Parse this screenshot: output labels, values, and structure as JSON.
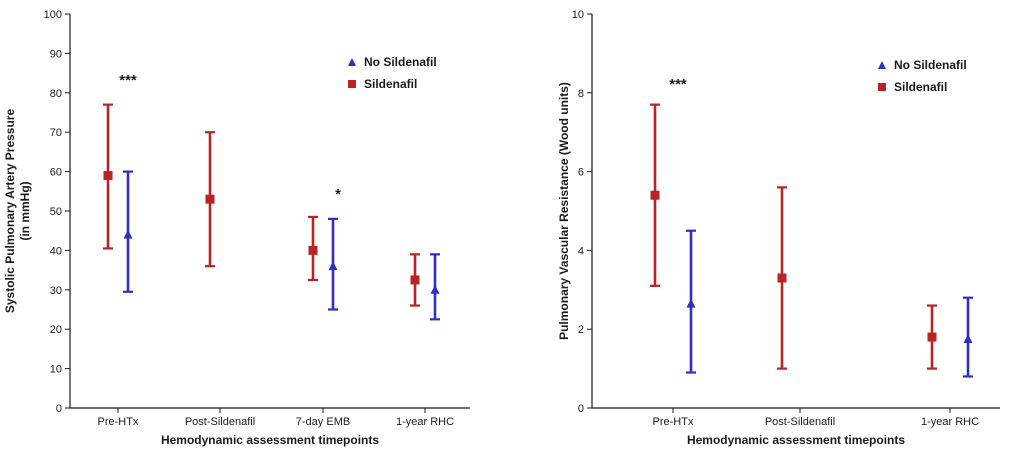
{
  "chart_data": [
    {
      "type": "scatter",
      "ylabel": "Systolic Pulmonary Artery Pressure\n(in mmHg)",
      "xlabel": "Hemodynamic assessment timepoints",
      "ylim": [
        0,
        100
      ],
      "yticks": [
        "0",
        "10",
        "20",
        "30",
        "40",
        "50",
        "60",
        "70",
        "80",
        "90",
        "100"
      ],
      "categories": [
        "Pre-HTx",
        "Post-Sildenafil",
        "7-day EMB",
        "1-year RHC"
      ],
      "legend": "top-right",
      "series": [
        {
          "name": "No Sildenafil",
          "color": "#2f2fc4",
          "marker": "triangle",
          "points": [
            {
              "category": "Pre-HTx",
              "mean": 44,
              "low": 29.5,
              "high": 60
            },
            {
              "category": "7-day EMB",
              "mean": 36,
              "low": 25,
              "high": 48
            },
            {
              "category": "1-year RHC",
              "mean": 30,
              "low": 22.5,
              "high": 39
            }
          ]
        },
        {
          "name": "Sildenafil",
          "color": "#b82424",
          "marker": "square",
          "points": [
            {
              "category": "Pre-HTx",
              "mean": 59,
              "low": 40.5,
              "high": 77
            },
            {
              "category": "Post-Sildenafil",
              "mean": 53,
              "low": 36,
              "high": 70
            },
            {
              "category": "7-day EMB",
              "mean": 40,
              "low": 32.5,
              "high": 48.5
            },
            {
              "category": "1-year RHC",
              "mean": 32.5,
              "low": 26,
              "high": 39
            }
          ]
        }
      ],
      "annotations": [
        {
          "category": "Pre-HTx",
          "text": "***",
          "y": 82
        },
        {
          "category": "7-day EMB",
          "text": "*",
          "y": 53
        }
      ]
    },
    {
      "type": "scatter",
      "ylabel": "Pulmonary Vascular Resistance (Wood units)",
      "xlabel": "Hemodynamic assessment timepoints",
      "ylim": [
        0,
        10
      ],
      "yticks": [
        "0",
        "2",
        "4",
        "6",
        "8",
        "10"
      ],
      "categories": [
        "Pre-HTx",
        "Post-Sildenafil",
        "1-year RHC"
      ],
      "legend": "top-right",
      "series": [
        {
          "name": "No Sildenafil",
          "color": "#2f2fc4",
          "marker": "triangle",
          "points": [
            {
              "category": "Pre-HTx",
              "mean": 2.65,
              "low": 0.9,
              "high": 4.5
            },
            {
              "category": "1-year RHC",
              "mean": 1.75,
              "low": 0.8,
              "high": 2.8
            }
          ]
        },
        {
          "name": "Sildenafil",
          "color": "#b82424",
          "marker": "square",
          "points": [
            {
              "category": "Pre-HTx",
              "mean": 5.4,
              "low": 3.1,
              "high": 7.7
            },
            {
              "category": "Post-Sildenafil",
              "mean": 3.3,
              "low": 1.0,
              "high": 5.6
            },
            {
              "category": "1-year RHC",
              "mean": 1.8,
              "low": 1.0,
              "high": 2.6
            }
          ]
        }
      ],
      "annotations": [
        {
          "category": "Pre-HTx",
          "text": "***",
          "y": 8.1
        }
      ]
    }
  ]
}
